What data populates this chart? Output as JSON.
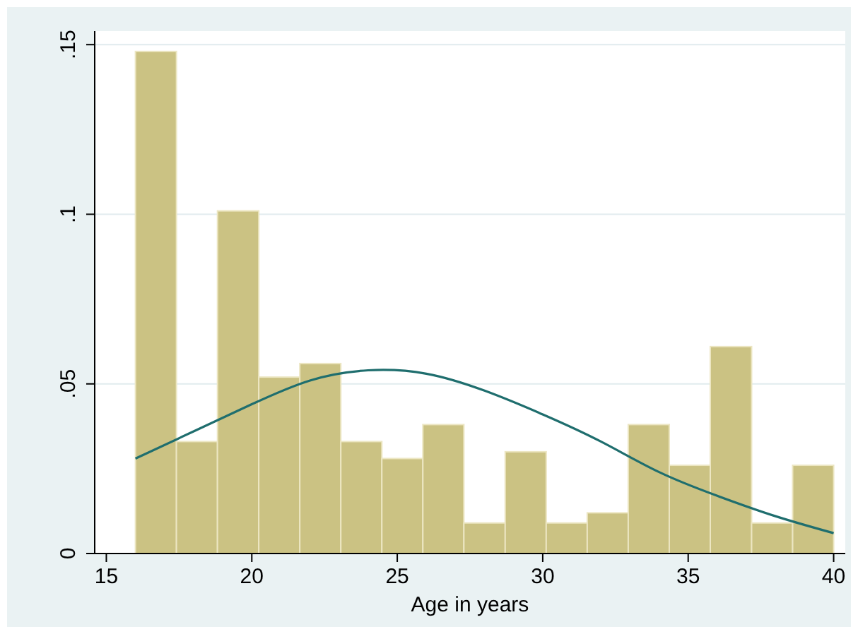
{
  "chart_data": {
    "type": "histogram",
    "xlabel": "Age in years",
    "bins": [
      16,
      17.41,
      18.82,
      20.24,
      21.65,
      23.06,
      24.47,
      25.88,
      27.29,
      28.71,
      30.12,
      31.53,
      32.94,
      34.35,
      35.76,
      37.18,
      38.59,
      40
    ],
    "series": [
      {
        "color": "#cbc283",
        "values": [
          0.148,
          0.033,
          0.101,
          0.052,
          0.056,
          0.033,
          0.028,
          0.038,
          0.009,
          0.03,
          0.009,
          0.012,
          0.038,
          0.026,
          0.061,
          0.009,
          0.026
        ]
      },
      {
        "type": "line",
        "color": "#1f6e6e",
        "x": [
          16,
          18,
          20,
          22,
          24,
          26,
          28,
          30,
          32,
          34,
          36,
          38,
          40
        ],
        "values": [
          0.028,
          0.036,
          0.044,
          0.051,
          0.054,
          0.053,
          0.048,
          0.041,
          0.033,
          0.024,
          0.017,
          0.011,
          0.006
        ]
      }
    ],
    "xlim": [
      14.6,
      40.4
    ],
    "xticks": [
      15,
      20,
      25,
      30,
      35,
      40
    ],
    "ylim": [
      0,
      0.154
    ],
    "yticks": [
      0,
      {
        "value": 0.05,
        "label": ".05"
      },
      {
        "value": 0.1,
        "label": ".1"
      },
      {
        "value": 0.15,
        "label": ".15"
      }
    ],
    "grid": "y",
    "marker": "none",
    "line_style": "solid"
  }
}
